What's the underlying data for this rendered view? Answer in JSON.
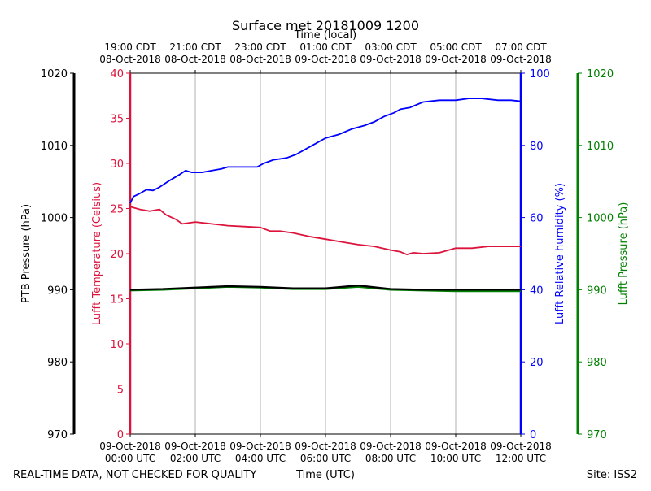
{
  "title": "Surface met 20181009 1200",
  "footer": {
    "left": "REAL-TIME DATA, NOT CHECKED FOR QUALITY",
    "center": "Time (UTC)",
    "right": "Site: ISS2"
  },
  "colors": {
    "temperature": "#dc143c",
    "humidity": "#0000ff",
    "lufft_pressure": "#008000",
    "ptb_pressure": "#000000",
    "grid": "#b0b0b0"
  },
  "chart_data": {
    "type": "line",
    "title": "Surface met 20181009 1200",
    "x_axis_bottom": {
      "label": "Time (UTC)",
      "range_hours": [
        0,
        12
      ],
      "ticks": [
        {
          "h": 0,
          "date": "09-Oct-2018",
          "time": "00:00 UTC"
        },
        {
          "h": 2,
          "date": "09-Oct-2018",
          "time": "02:00 UTC"
        },
        {
          "h": 4,
          "date": "09-Oct-2018",
          "time": "04:00 UTC"
        },
        {
          "h": 6,
          "date": "09-Oct-2018",
          "time": "06:00 UTC"
        },
        {
          "h": 8,
          "date": "09-Oct-2018",
          "time": "08:00 UTC"
        },
        {
          "h": 10,
          "date": "09-Oct-2018",
          "time": "10:00 UTC"
        },
        {
          "h": 12,
          "date": "09-Oct-2018",
          "time": "12:00 UTC"
        }
      ]
    },
    "x_axis_top": {
      "label": "Time (local)",
      "ticks": [
        {
          "h": 0,
          "time": "19:00 CDT",
          "date": "08-Oct-2018"
        },
        {
          "h": 2,
          "time": "21:00 CDT",
          "date": "08-Oct-2018"
        },
        {
          "h": 4,
          "time": "23:00 CDT",
          "date": "08-Oct-2018"
        },
        {
          "h": 6,
          "time": "01:00 CDT",
          "date": "09-Oct-2018"
        },
        {
          "h": 8,
          "time": "03:00 CDT",
          "date": "09-Oct-2018"
        },
        {
          "h": 10,
          "time": "05:00 CDT",
          "date": "09-Oct-2018"
        },
        {
          "h": 12,
          "time": "07:00 CDT",
          "date": "09-Oct-2018"
        }
      ]
    },
    "y_axes": {
      "ptb_pressure": {
        "label": "PTB Pressure (hPa)",
        "range": [
          970,
          1020
        ],
        "ticks": [
          "970",
          "980",
          "990",
          "1000",
          "1010",
          "1020"
        ]
      },
      "temperature": {
        "label": "Lufft Temperature (Celsius)",
        "range": [
          0,
          40
        ],
        "ticks": [
          "0",
          "5",
          "10",
          "15",
          "20",
          "25",
          "30",
          "35",
          "40"
        ]
      },
      "humidity": {
        "label": "Lufft Relative humidity (%)",
        "range": [
          0,
          100
        ],
        "ticks": [
          "0",
          "20",
          "40",
          "60",
          "80",
          "100"
        ]
      },
      "lufft_pressure": {
        "label": "Lufft Pressure (hPa)",
        "range": [
          970,
          1020
        ],
        "ticks": [
          "970",
          "980",
          "990",
          "1000",
          "1010",
          "1020"
        ]
      }
    },
    "series": [
      {
        "name": "Lufft Temperature (Celsius)",
        "axis": "temperature",
        "x": [
          0,
          0.3,
          0.6,
          0.9,
          1.1,
          1.4,
          1.6,
          2.0,
          2.5,
          3.0,
          3.5,
          4.0,
          4.3,
          4.6,
          5.0,
          5.5,
          6.0,
          6.5,
          7.0,
          7.5,
          8.0,
          8.3,
          8.5,
          8.7,
          9.0,
          9.5,
          10.0,
          10.5,
          11.0,
          11.5,
          12.0
        ],
        "values": [
          25.2,
          24.9,
          24.7,
          24.9,
          24.3,
          23.8,
          23.3,
          23.5,
          23.3,
          23.1,
          23.0,
          22.9,
          22.5,
          22.5,
          22.3,
          21.9,
          21.6,
          21.3,
          21.0,
          20.8,
          20.4,
          20.2,
          19.9,
          20.1,
          20.0,
          20.1,
          20.6,
          20.6,
          20.8,
          20.8,
          20.8
        ]
      },
      {
        "name": "Lufft Relative humidity (%)",
        "axis": "humidity",
        "x": [
          0,
          0.1,
          0.3,
          0.5,
          0.7,
          0.9,
          1.2,
          1.5,
          1.7,
          1.9,
          2.2,
          2.5,
          2.8,
          3.0,
          3.3,
          3.6,
          3.9,
          4.1,
          4.4,
          4.8,
          5.1,
          5.4,
          5.7,
          6.0,
          6.4,
          6.8,
          7.2,
          7.5,
          7.8,
          8.1,
          8.3,
          8.6,
          9.0,
          9.5,
          10.0,
          10.4,
          10.8,
          11.3,
          11.7,
          12.0
        ],
        "values": [
          64,
          65.8,
          66.7,
          67.7,
          67.5,
          68.4,
          70.2,
          71.8,
          73,
          72.5,
          72.5,
          73,
          73.5,
          74,
          74,
          74,
          74,
          75,
          76,
          76.5,
          77.5,
          79,
          80.5,
          82,
          83,
          84.5,
          85.5,
          86.5,
          88,
          89,
          90,
          90.5,
          92,
          92.5,
          92.5,
          93,
          93,
          92.5,
          92.5,
          92.2
        ]
      },
      {
        "name": "Lufft Pressure (hPa)",
        "axis": "lufft_pressure",
        "x": [
          0,
          1,
          2,
          3,
          4,
          5,
          6,
          7,
          8,
          9,
          10,
          11,
          12
        ],
        "values": [
          989.9,
          990.0,
          990.2,
          990.4,
          990.3,
          990.1,
          990.1,
          990.4,
          990.0,
          989.9,
          989.8,
          989.8,
          989.8
        ]
      },
      {
        "name": "PTB Pressure (hPa)",
        "axis": "ptb_pressure",
        "x": [
          0,
          1,
          2,
          3,
          4,
          5,
          6,
          7,
          8,
          9,
          10,
          11,
          12
        ],
        "values": [
          990.0,
          990.1,
          990.3,
          990.5,
          990.4,
          990.2,
          990.2,
          990.6,
          990.1,
          990.0,
          990.0,
          990.0,
          990.0
        ]
      }
    ]
  }
}
